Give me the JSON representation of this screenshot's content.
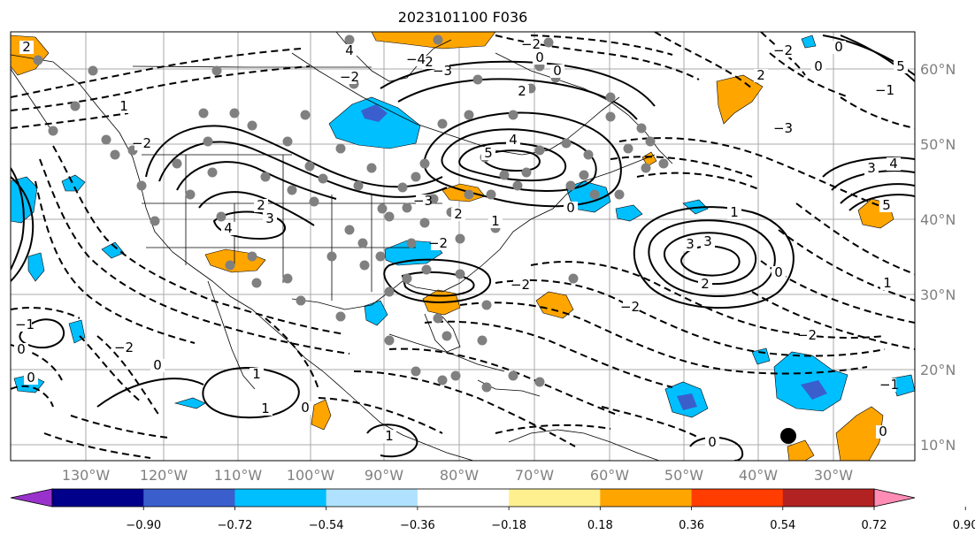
{
  "title": "2023101100 F036",
  "lon_labels": [
    "130°W",
    "120°W",
    "110°W",
    "100°W",
    "90°W",
    "80°W",
    "70°W",
    "60°W",
    "50°W",
    "40°W",
    "30°W"
  ],
  "lat_labels": [
    "60°N",
    "50°N",
    "40°N",
    "30°N",
    "20°N",
    "10°N"
  ],
  "colorbar": {
    "colors": [
      "#9932cc",
      "#00008b",
      "#3a5fcd",
      "#00bfff",
      "#b0e2ff",
      "#ffffff",
      "#fff08f",
      "#ffa500",
      "#ff3d00",
      "#b22222",
      "#ff8cb4"
    ],
    "tick_labels": [
      "−0.90",
      "−0.72",
      "−0.54",
      "−0.36",
      "−0.18",
      "0.18",
      "0.36",
      "0.54",
      "0.72",
      "0.90"
    ]
  },
  "contour_labels": [
    "2",
    "4",
    "1",
    "2",
    "0",
    "2",
    "5",
    "4",
    "2",
    "3",
    "−2",
    "0",
    "3",
    "4",
    "5",
    "−1",
    "3",
    "−2",
    "0",
    "1",
    "−1",
    "1",
    "3",
    "2",
    "0",
    "1",
    "2",
    "−2",
    "−2",
    "−2",
    "0",
    "0",
    "1",
    "0",
    "1",
    "0",
    "0",
    "−2",
    "0",
    "1",
    "2",
    "0",
    "5",
    "4",
    "−3",
    "−2",
    "−4",
    "−3",
    "−3",
    "−2",
    "−2",
    "0",
    "−1"
  ],
  "colors": {
    "shade_orange": "#ffa500",
    "shade_blue": "#00bfff",
    "shade_darkblue": "#3a5fcd",
    "dots": "#808080"
  }
}
